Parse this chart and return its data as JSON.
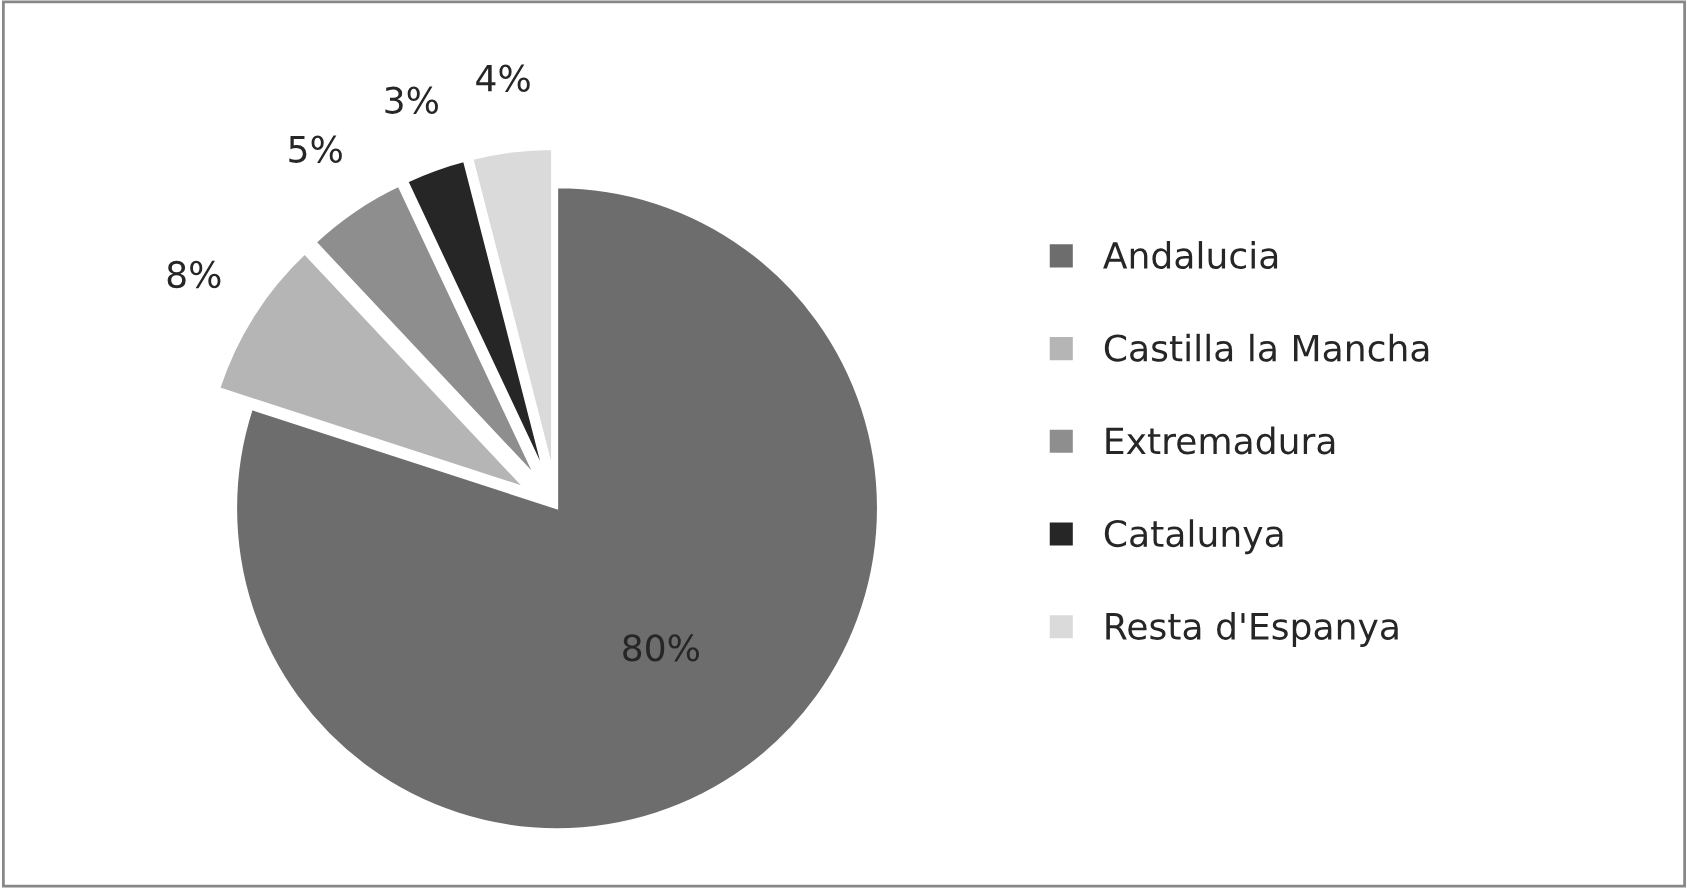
{
  "chart_data": {
    "type": "pie",
    "categories": [
      "Andalucia",
      "Castilla la Mancha",
      "Extremadura",
      "Catalunya",
      "Resta d'Espanya"
    ],
    "values": [
      80,
      8,
      5,
      3,
      4
    ],
    "colors": [
      "#6d6d6d",
      "#b5b5b5",
      "#8e8e8e",
      "#262626",
      "#dadada"
    ],
    "value_labels": [
      "80%",
      "8%",
      "5%",
      "3%",
      "4%"
    ],
    "legend": "right"
  }
}
